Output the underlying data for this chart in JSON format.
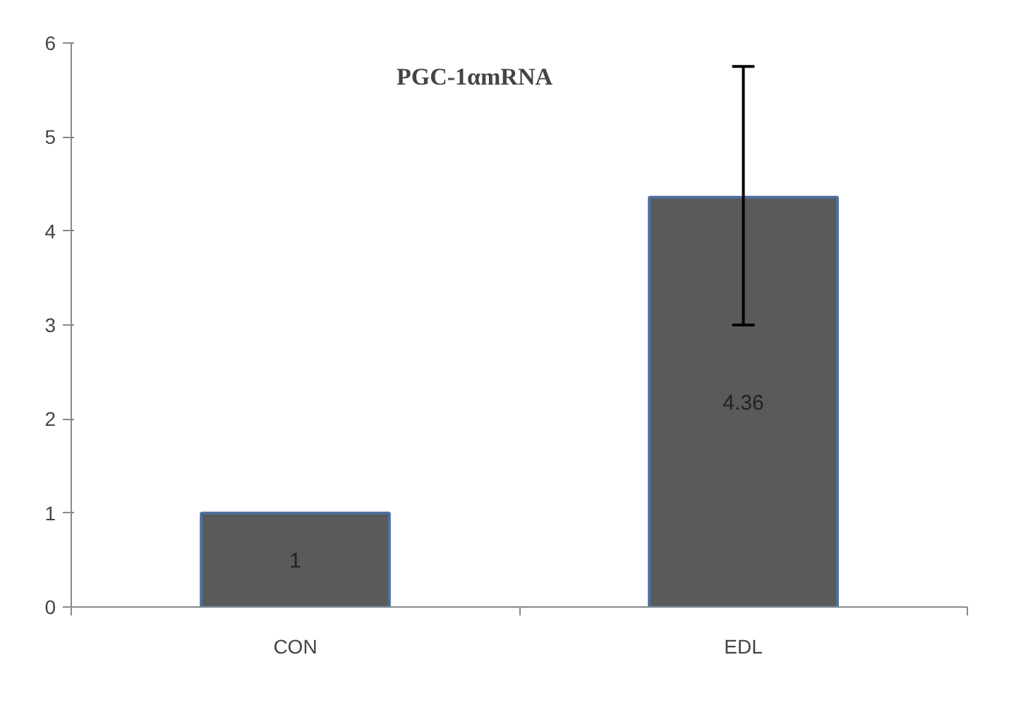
{
  "chart_data": {
    "type": "bar",
    "title": "PGC-1αmRNA",
    "categories": [
      "CON",
      "EDL"
    ],
    "values": [
      1,
      4.36
    ],
    "colors": [
      "#5a5a5a",
      "#5a5a5a"
    ],
    "errors": [
      null,
      [
        3.0,
        5.75
      ]
    ],
    "ylim": [
      0,
      6
    ],
    "yticks": [
      0,
      1,
      2,
      3,
      4,
      5,
      6
    ],
    "grid": false,
    "data_labels": true
  }
}
